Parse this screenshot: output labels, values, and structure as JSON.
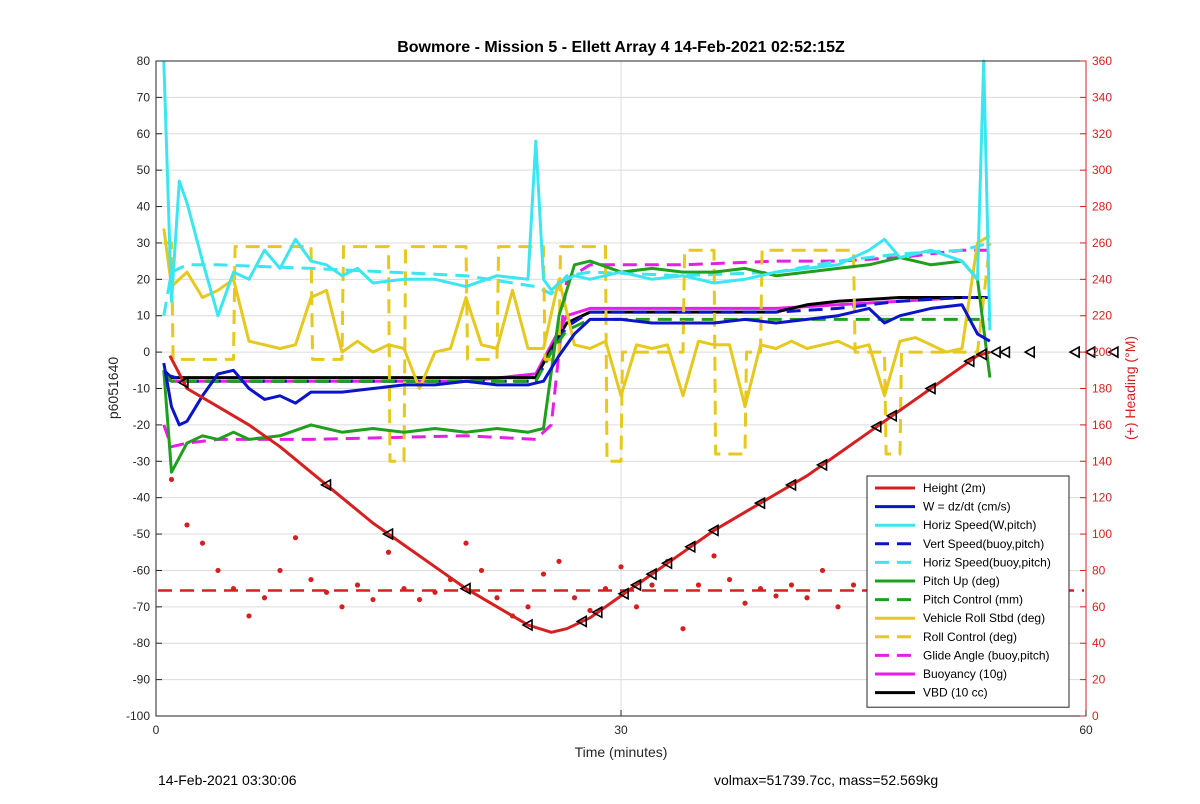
{
  "chart_data": {
    "type": "line",
    "title": "Bowmore - Mission 5 - Ellett Array 4 14-Feb-2021 02:52:15Z",
    "xlabel": "Time (minutes)",
    "ylabel": "p6051640",
    "y2label": "(+) Heading (°M)",
    "xlim": [
      0,
      60
    ],
    "ylim": [
      -100,
      80
    ],
    "y2lim": [
      0,
      360
    ],
    "xticks": [
      "0",
      "30",
      "60"
    ],
    "yticks": [
      "80",
      "70",
      "60",
      "50",
      "40",
      "30",
      "20",
      "10",
      "0",
      "-10",
      "-20",
      "-30",
      "-40",
      "-50",
      "-60",
      "-70",
      "-80",
      "-90",
      "-100"
    ],
    "y2ticks": [
      "360",
      "340",
      "320",
      "300",
      "280",
      "260",
      "240",
      "220",
      "200",
      "180",
      "160",
      "140",
      "120",
      "100",
      "80",
      "60",
      "40",
      "20",
      "0"
    ],
    "grid": true,
    "legend_position": "bottom-right",
    "colors": {
      "red": "#d62020",
      "blue": "#0a14c8",
      "cyan": "#3ce6f0",
      "green": "#1ea01e",
      "yellow": "#e6c81e",
      "magenta": "#e61ee6",
      "black": "#000000"
    },
    "series": [
      {
        "name": "Height (2m)",
        "color": "#d62020",
        "style": "solid",
        "x": [
          0.9,
          2,
          4,
          6,
          8,
          10,
          12,
          14,
          16,
          18,
          20,
          22,
          24,
          25.5,
          26.5,
          28,
          30,
          32,
          34,
          36,
          38,
          40,
          42,
          44,
          46,
          48,
          50,
          52,
          53,
          53.8
        ],
        "y": [
          -1,
          -10,
          -15,
          -20,
          -26,
          -33,
          -40,
          -47,
          -53,
          -59,
          -65,
          -70,
          -75,
          -77,
          -76,
          -73,
          -67,
          -61,
          -55,
          -49,
          -44,
          -39,
          -34,
          -28,
          -22,
          -16,
          -10,
          -4,
          -1,
          0
        ]
      },
      {
        "name": "W = dz/dt (cm/s)",
        "color": "#0a14c8",
        "style": "solid",
        "x": [
          0.5,
          1,
          1.5,
          2,
          3,
          4,
          5,
          6,
          7,
          8,
          9,
          10,
          12,
          14,
          16,
          18,
          20,
          22,
          24,
          25,
          26,
          27,
          28,
          30,
          32,
          34,
          36,
          38,
          40,
          42,
          44,
          46,
          47,
          48,
          50,
          52,
          53,
          53.8
        ],
        "y": [
          -3,
          -15,
          -20,
          -19,
          -12,
          -6,
          -5,
          -10,
          -13,
          -12,
          -14,
          -11,
          -11,
          -10,
          -9,
          -9,
          -8,
          -9,
          -9,
          -8,
          -1,
          5,
          9,
          9,
          8,
          8,
          8,
          9,
          8,
          9,
          10,
          12,
          8,
          10,
          12,
          13,
          5,
          3
        ]
      },
      {
        "name": "Horiz Speed(W,pitch)",
        "color": "#3ce6f0",
        "style": "solid",
        "x": [
          0.5,
          1,
          1.5,
          2,
          3,
          4,
          5,
          6,
          7,
          8,
          9,
          10,
          11,
          12,
          13,
          14,
          16,
          18,
          20,
          22,
          24,
          24.5,
          25,
          25.5,
          26,
          27,
          28,
          30,
          32,
          34,
          36,
          38,
          40,
          42,
          44,
          46,
          47,
          48,
          50,
          52,
          53,
          53.4,
          53.8
        ],
        "y": [
          80,
          14,
          47,
          41,
          25,
          10,
          22,
          20,
          28,
          23,
          31,
          25,
          24,
          21,
          23,
          19,
          20,
          20,
          18,
          21,
          20,
          58,
          20,
          17,
          19,
          21,
          20,
          22,
          20,
          21,
          19,
          20,
          22,
          23,
          24,
          28,
          31,
          26,
          28,
          25,
          20,
          80,
          6
        ]
      },
      {
        "name": "Vert Speed(buoy,pitch)",
        "color": "#0a14c8",
        "style": "dashed",
        "x": [
          0.5,
          2,
          4,
          10,
          20,
          24.5,
          25.5,
          26.5,
          28,
          34,
          40,
          44,
          48,
          52,
          53.8
        ],
        "y": [
          -6,
          -8,
          -8,
          -8,
          -8,
          -8,
          0,
          7,
          11,
          11,
          11,
          12,
          14,
          15,
          15
        ]
      },
      {
        "name": "Horiz Speed(buoy,pitch)",
        "color": "#3ce6f0",
        "style": "dashed",
        "x": [
          0.5,
          1,
          2,
          4,
          10,
          20,
          24.5,
          25.5,
          26.5,
          28,
          34,
          40,
          44,
          48,
          52,
          53.8
        ],
        "y": [
          10,
          22,
          24,
          24,
          23,
          21,
          18,
          16,
          21,
          22,
          21,
          22,
          25,
          27,
          28,
          30
        ]
      },
      {
        "name": "Pitch Up (deg)",
        "color": "#1ea01e",
        "style": "solid",
        "x": [
          0.5,
          1,
          2,
          3,
          4,
          5,
          6,
          8,
          10,
          12,
          14,
          16,
          18,
          20,
          22,
          24,
          25,
          26,
          27,
          28,
          30,
          32,
          34,
          36,
          38,
          40,
          42,
          44,
          46,
          48,
          50,
          52,
          53,
          53.8
        ],
        "y": [
          -5,
          -33,
          -25,
          -23,
          -24,
          -22,
          -24,
          -23,
          -20,
          -22,
          -21,
          -22,
          -21,
          -22,
          -21,
          -22,
          -21,
          10,
          24,
          25,
          22,
          23,
          22,
          22,
          23,
          21,
          22,
          23,
          24,
          26,
          24,
          25,
          20,
          -7
        ]
      },
      {
        "name": "Pitch Control (mm)",
        "color": "#1ea01e",
        "style": "dashed",
        "x": [
          0.5,
          1,
          3,
          10,
          20,
          24.5,
          25.5,
          26.5,
          28,
          40,
          53.8
        ],
        "y": [
          -6,
          -8,
          -8,
          -8,
          -8,
          -8,
          0,
          6,
          9,
          9,
          9
        ]
      },
      {
        "name": "Vehicle Roll Stbd (deg)",
        "color": "#e6c81e",
        "style": "solid",
        "x": [
          0.5,
          1,
          2,
          3,
          4,
          5,
          6,
          7,
          8,
          9,
          10,
          11,
          12,
          13,
          14,
          15,
          16,
          17,
          18,
          19,
          20,
          21,
          22,
          23,
          24,
          25,
          26,
          27,
          28,
          29,
          30,
          31,
          32,
          33,
          34,
          35,
          36,
          37,
          38,
          39,
          40,
          41,
          42,
          43,
          44,
          45,
          46,
          47,
          48,
          49,
          50,
          51,
          52,
          53,
          53.8
        ],
        "y": [
          34,
          18,
          22,
          15,
          17,
          20,
          3,
          2,
          1,
          2,
          15,
          17,
          0,
          3,
          0,
          2,
          1,
          -10,
          0,
          1,
          15,
          2,
          1,
          17,
          1,
          1,
          20,
          2,
          1,
          3,
          -12,
          2,
          1,
          2,
          -12,
          3,
          2,
          2,
          -15,
          2,
          1,
          3,
          1,
          2,
          3,
          1,
          2,
          -12,
          3,
          4,
          2,
          0,
          1,
          30,
          32
        ]
      },
      {
        "name": "Roll Control (deg)",
        "color": "#e6c81e",
        "style": "dashed",
        "x": [
          0.5,
          1,
          1.1,
          5,
          5.1,
          10,
          10.1,
          12,
          12.1,
          15,
          15.1,
          16,
          16.1,
          20,
          20.1,
          22,
          22.1,
          25,
          25.1,
          26,
          26.1,
          29,
          29.1,
          30,
          30.1,
          34,
          34.1,
          36,
          36.1,
          38,
          38.1,
          39,
          39.1,
          45,
          45.1,
          47,
          47.1,
          48,
          48.1,
          53,
          53.8
        ],
        "y": [
          30,
          30,
          -2,
          -2,
          29,
          29,
          -2,
          -2,
          29,
          29,
          -30,
          -30,
          29,
          29,
          -2,
          -2,
          29,
          29,
          -2,
          -2,
          29,
          29,
          -30,
          -30,
          0,
          0,
          28,
          28,
          -28,
          -28,
          0,
          0,
          28,
          28,
          0,
          0,
          -28,
          -28,
          0,
          0,
          30
        ]
      },
      {
        "name": "Glide Angle (buoy,pitch)",
        "color": "#e61ee6",
        "style": "dashed",
        "x": [
          0.5,
          1,
          2,
          4,
          10,
          20,
          24.5,
          25.5,
          26.5,
          28,
          34,
          40,
          44,
          48,
          52,
          53.8
        ],
        "y": [
          -20,
          -26,
          -25,
          -24,
          -24,
          -23,
          -24,
          -20,
          20,
          24,
          24,
          25,
          25,
          26,
          28,
          28
        ]
      },
      {
        "name": "Buoyancy (10g)",
        "color": "#e61ee6",
        "style": "solid",
        "x": [
          0.5,
          1,
          4,
          10,
          20,
          24.5,
          25.5,
          26.5,
          28,
          34,
          40,
          44,
          48,
          52,
          53.8
        ],
        "y": [
          -7,
          -8,
          -8,
          -8,
          -8,
          -6,
          2,
          10,
          12,
          12,
          12,
          13,
          14,
          15,
          15
        ]
      },
      {
        "name": "VBD (10 cc)",
        "color": "#000000",
        "style": "solid",
        "x": [
          0.5,
          1,
          4,
          10,
          20,
          24.5,
          25.5,
          26.5,
          28,
          34,
          40,
          42,
          44,
          48,
          52,
          53.8
        ],
        "y": [
          -5,
          -7,
          -7,
          -7,
          -7,
          -7,
          1,
          8,
          11,
          11,
          11,
          13,
          14,
          15,
          15,
          15
        ]
      }
    ],
    "heading_mean": 69,
    "heading_points": {
      "x": [
        1,
        2,
        3,
        4,
        5,
        6,
        7,
        8,
        9,
        10,
        11,
        12,
        13,
        14,
        15,
        16,
        17,
        18,
        19,
        20,
        21,
        22,
        23,
        24,
        25,
        26,
        27,
        28,
        29,
        30,
        31,
        32,
        33,
        34,
        35,
        36,
        37,
        38,
        39,
        40,
        41,
        42,
        43,
        44,
        45,
        46,
        47,
        48,
        49,
        50,
        51,
        52,
        53
      ],
      "y": [
        130,
        105,
        95,
        80,
        70,
        55,
        65,
        80,
        98,
        75,
        68,
        60,
        72,
        64,
        90,
        70,
        64,
        68,
        75,
        95,
        80,
        65,
        55,
        60,
        78,
        85,
        65,
        58,
        70,
        82,
        60,
        72,
        85,
        48,
        72,
        88,
        75,
        62,
        70,
        66,
        72,
        65,
        80,
        60,
        72,
        55,
        70,
        62,
        50,
        48,
        40,
        36,
        12
      ]
    },
    "triangle_markers_x": [
      1.8,
      11,
      15,
      20,
      24,
      27.5,
      28.5,
      30.2,
      31,
      32,
      33,
      34.5,
      36,
      39,
      41,
      43,
      46.5,
      47.5,
      50,
      52.5,
      53.3,
      54.2,
      54.8,
      56.4,
      59.3,
      60.3,
      61.8
    ]
  },
  "footer": {
    "timestamp": "14-Feb-2021 03:30:06",
    "stats": "volmax=51739.7cc, mass=52.569kg"
  }
}
